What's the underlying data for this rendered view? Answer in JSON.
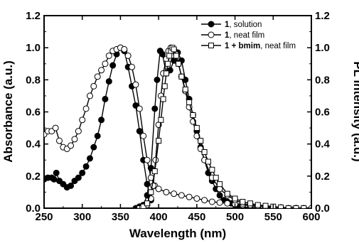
{
  "chart_data": {
    "type": "line",
    "xlabel": "Wavelength (nm)",
    "ylabel_left": "Absorbance (a.u.)",
    "ylabel_right": "PL Intensity (a.u.)",
    "xlim": [
      250,
      600
    ],
    "ylim": [
      0,
      1.2
    ],
    "x_ticks": [
      250,
      300,
      350,
      400,
      450,
      500,
      550,
      600
    ],
    "x_tick_labels": [
      "250",
      "300",
      "350",
      "400",
      "450",
      "500",
      "550",
      "600"
    ],
    "y_ticks": [
      0,
      0.2,
      0.4,
      0.6,
      0.8,
      1.0,
      1.2
    ],
    "y_tick_labels": [
      "0.0",
      "0.2",
      "0.4",
      "0.6",
      "0.8",
      "1.0",
      "1.2"
    ],
    "grid": false,
    "legend_position": "top-right",
    "legend": [
      {
        "bold": "1",
        "rest": ", solution",
        "marker": "filled-circle"
      },
      {
        "bold": "1",
        "rest": ", neat film",
        "marker": "open-circle"
      },
      {
        "bold": "1 + bmim",
        "rest": ", neat film",
        "marker": "open-square"
      }
    ],
    "series": [
      {
        "name": "1, solution (absorbance)",
        "marker": "filled-circle",
        "x": [
          250,
          255,
          260,
          263,
          266,
          270,
          275,
          280,
          285,
          290,
          295,
          300,
          305,
          310,
          315,
          320,
          325,
          330,
          335,
          340,
          345,
          350,
          355,
          360,
          365,
          370,
          375,
          380,
          385,
          390
        ],
        "y": [
          0.18,
          0.19,
          0.19,
          0.18,
          0.22,
          0.17,
          0.15,
          0.13,
          0.14,
          0.17,
          0.19,
          0.22,
          0.26,
          0.31,
          0.38,
          0.45,
          0.55,
          0.68,
          0.79,
          0.89,
          0.96,
          1.0,
          0.98,
          0.88,
          0.76,
          0.64,
          0.48,
          0.3,
          0.15,
          0.05
        ]
      },
      {
        "name": "1, solution (PL)",
        "marker": "filled-circle",
        "x": [
          370,
          375,
          380,
          385,
          390,
          395,
          398,
          402,
          405,
          410,
          415,
          420,
          425,
          430,
          435,
          440,
          445,
          450,
          455,
          460,
          465,
          470,
          475,
          480,
          485,
          490,
          495,
          500,
          505,
          510,
          520,
          530,
          540,
          550
        ],
        "y": [
          0.0,
          0.01,
          0.02,
          0.08,
          0.25,
          0.62,
          0.8,
          0.98,
          0.96,
          0.84,
          0.86,
          0.92,
          0.97,
          0.92,
          0.8,
          0.68,
          0.58,
          0.48,
          0.38,
          0.3,
          0.22,
          0.17,
          0.12,
          0.08,
          0.05,
          0.04,
          0.03,
          0.02,
          0.01,
          0.01,
          0.0,
          0.0,
          0.0,
          0.0
        ]
      },
      {
        "name": "1, neat film (absorbance)",
        "marker": "open-circle",
        "x": [
          250,
          255,
          260,
          265,
          270,
          275,
          280,
          285,
          290,
          295,
          300,
          305,
          310,
          315,
          320,
          325,
          330,
          335,
          340,
          345,
          350,
          355,
          360,
          365,
          370,
          375,
          380,
          385,
          390,
          395,
          400,
          410,
          420,
          430,
          440,
          450,
          460,
          470,
          480,
          490,
          500,
          510,
          520,
          540,
          560,
          580,
          600
        ],
        "y": [
          0.46,
          0.48,
          0.48,
          0.5,
          0.42,
          0.38,
          0.37,
          0.39,
          0.43,
          0.48,
          0.55,
          0.62,
          0.7,
          0.76,
          0.82,
          0.86,
          0.9,
          0.95,
          0.98,
          0.99,
          1.0,
          0.99,
          0.95,
          0.88,
          0.77,
          0.62,
          0.45,
          0.3,
          0.19,
          0.14,
          0.12,
          0.1,
          0.09,
          0.08,
          0.07,
          0.06,
          0.05,
          0.04,
          0.035,
          0.03,
          0.025,
          0.02,
          0.015,
          0.01,
          0.005,
          0.0,
          0.0
        ]
      },
      {
        "name": "1, neat film (PL)",
        "marker": "open-circle",
        "x": [
          385,
          390,
          393,
          396,
          400,
          403,
          406,
          410,
          413,
          416,
          420,
          423,
          426,
          430,
          435,
          440,
          445,
          450,
          455,
          460,
          470,
          480,
          490,
          500,
          510,
          520,
          530,
          540,
          550,
          560,
          570,
          580,
          590
        ],
        "y": [
          0.02,
          0.06,
          0.14,
          0.3,
          0.52,
          0.7,
          0.84,
          0.93,
          0.98,
          1.0,
          0.99,
          0.96,
          0.9,
          0.82,
          0.73,
          0.63,
          0.54,
          0.45,
          0.37,
          0.3,
          0.19,
          0.12,
          0.08,
          0.05,
          0.03,
          0.02,
          0.015,
          0.01,
          0.005,
          0.0,
          0.0,
          0.0,
          0.0
        ]
      },
      {
        "name": "1 + bmim, neat film (PL)",
        "marker": "open-square",
        "x": [
          375,
          380,
          385,
          390,
          395,
          400,
          403,
          406,
          408,
          410,
          412,
          414,
          416,
          418,
          420,
          423,
          426,
          430,
          435,
          440,
          445,
          450,
          455,
          460,
          465,
          470,
          475,
          480,
          490,
          500,
          510,
          520,
          530,
          540,
          550,
          560,
          570,
          580,
          590
        ],
        "y": [
          0.0,
          0.01,
          0.03,
          0.1,
          0.23,
          0.42,
          0.55,
          0.68,
          0.76,
          0.84,
          0.9,
          0.95,
          0.98,
          1.0,
          0.99,
          0.95,
          0.9,
          0.82,
          0.74,
          0.66,
          0.58,
          0.5,
          0.42,
          0.35,
          0.29,
          0.24,
          0.19,
          0.15,
          0.09,
          0.06,
          0.04,
          0.03,
          0.02,
          0.015,
          0.01,
          0.005,
          0.0,
          0.0,
          0.0
        ]
      }
    ]
  }
}
